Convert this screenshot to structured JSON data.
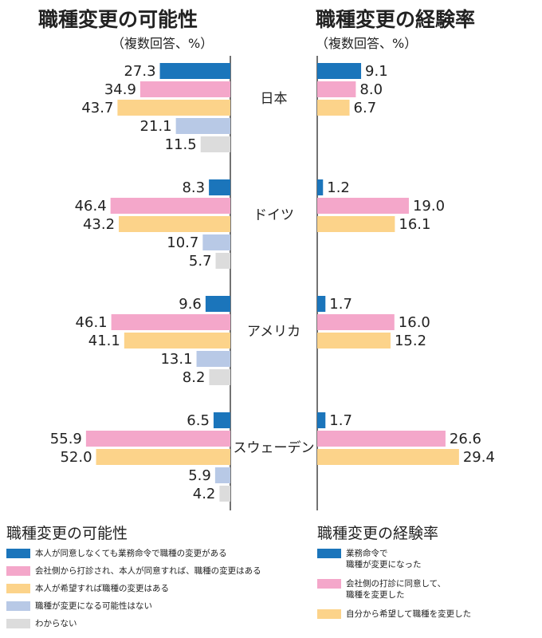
{
  "colors": {
    "blue": "#1b75bb",
    "pink": "#f4a7ca",
    "orange": "#fcd38a",
    "lightblue": "#b8c9e6",
    "gray": "#dcdcdc",
    "axis": "#444444"
  },
  "chart_data": [
    {
      "type": "bar",
      "orientation": "horizontal",
      "title": "職種変更の可能性",
      "subtitle": "（複数回答、%）",
      "categories": [
        "日本",
        "ドイツ",
        "アメリカ",
        "スウェーデン"
      ],
      "series": [
        {
          "name": "本人が同意しなくても業務命令で職種の変更がある",
          "color": "#1b75bb",
          "values": [
            27.3,
            8.3,
            9.6,
            6.5
          ]
        },
        {
          "name": "会社側から打診され、本人が同意すれば、職種の変更はある",
          "color": "#f4a7ca",
          "values": [
            34.9,
            46.4,
            46.1,
            55.9
          ]
        },
        {
          "name": "本人が希望すれば職種の変更はある",
          "color": "#fcd38a",
          "values": [
            43.7,
            43.2,
            41.1,
            52.0
          ]
        },
        {
          "name": "職種が変更になる可能性はない",
          "color": "#b8c9e6",
          "values": [
            21.1,
            10.7,
            13.1,
            5.9
          ]
        },
        {
          "name": "わからない",
          "color": "#dcdcdc",
          "values": [
            11.5,
            5.7,
            8.2,
            4.2
          ]
        }
      ],
      "value_labels": [
        [
          "27.3",
          "34.9",
          "43.7",
          "21.1",
          "11.5"
        ],
        [
          "8.3",
          "46.4",
          "43.2",
          "10.7",
          "5.7"
        ],
        [
          "9.6",
          "46.1",
          "41.1",
          "13.1",
          "8.2"
        ],
        [
          "6.5",
          "55.9",
          "52.0",
          "5.9",
          "4.2"
        ]
      ],
      "direction": "leftward",
      "xlim": [
        0,
        60
      ],
      "grid": false
    },
    {
      "type": "bar",
      "orientation": "horizontal",
      "title": "職種変更の経験率",
      "subtitle": "（複数回答、%）",
      "categories": [
        "日本",
        "ドイツ",
        "アメリカ",
        "スウェーデン"
      ],
      "series": [
        {
          "name": "業務命令で職種が変更になった",
          "color": "#1b75bb",
          "values": [
            9.1,
            1.2,
            1.7,
            1.7
          ]
        },
        {
          "name": "会社側の打診に同意して、職種を変更した",
          "color": "#f4a7ca",
          "values": [
            8.0,
            19.0,
            16.0,
            26.6
          ]
        },
        {
          "name": "自分から希望して職種を変更した",
          "color": "#fcd38a",
          "values": [
            6.7,
            16.1,
            15.2,
            29.4
          ]
        }
      ],
      "value_labels": [
        [
          "9.1",
          "8.0",
          "6.7"
        ],
        [
          "1.2",
          "19.0",
          "16.1"
        ],
        [
          "1.7",
          "16.0",
          "15.2"
        ],
        [
          "1.7",
          "26.6",
          "29.4"
        ]
      ],
      "direction": "rightward",
      "xlim": [
        0,
        32
      ],
      "grid": false
    }
  ],
  "legend_left": {
    "title": "職種変更の可能性",
    "items": [
      {
        "label": "本人が同意しなくても業務命令で職種の変更がある",
        "color": "#1b75bb"
      },
      {
        "label": "会社側から打診され、本人が同意すれば、職種の変更はある",
        "color": "#f4a7ca"
      },
      {
        "label": "本人が希望すれば職種の変更はある",
        "color": "#fcd38a"
      },
      {
        "label": "職種が変更になる可能性はない",
        "color": "#b8c9e6"
      },
      {
        "label": "わからない",
        "color": "#dcdcdc"
      }
    ]
  },
  "legend_right": {
    "title": "職種変更の経験率",
    "items": [
      {
        "label": "業務命令で\n職種が変更になった",
        "color": "#1b75bb"
      },
      {
        "label": "会社側の打診に同意して、\n職種を変更した",
        "color": "#f4a7ca"
      },
      {
        "label": "自分から希望して職種を変更した",
        "color": "#fcd38a"
      }
    ]
  }
}
